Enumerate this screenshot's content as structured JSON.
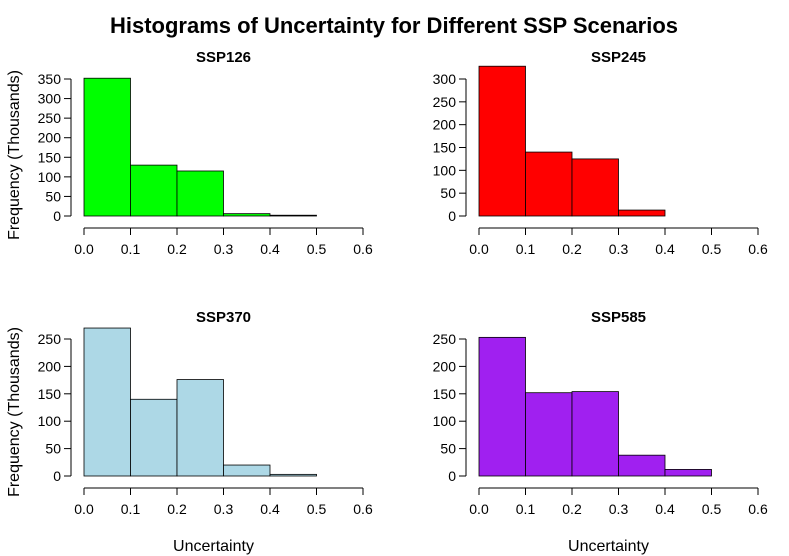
{
  "figure": {
    "title": "Histograms of Uncertainty for Different SSP Scenarios",
    "ylabel": "Frequency (Thousands)",
    "xlabel": "Uncertainty"
  },
  "chart_data": [
    {
      "type": "bar",
      "title": "SSP126",
      "color": "#00ff00",
      "bin_edges": [
        0.0,
        0.1,
        0.2,
        0.3,
        0.4,
        0.5,
        0.6
      ],
      "values": [
        352,
        130,
        115,
        6,
        2,
        0
      ],
      "xlim": [
        0,
        0.6
      ],
      "ylim": [
        0,
        350
      ],
      "xticks": [
        "0.0",
        "0.1",
        "0.2",
        "0.3",
        "0.4",
        "0.5",
        "0.6"
      ],
      "yticks": [
        0,
        50,
        100,
        150,
        200,
        250,
        300,
        350
      ],
      "ylabel": "Frequency (Thousands)",
      "xlabel": ""
    },
    {
      "type": "bar",
      "title": "SSP245",
      "color": "#ff0000",
      "bin_edges": [
        0.0,
        0.1,
        0.2,
        0.3,
        0.4,
        0.5,
        0.6
      ],
      "values": [
        328,
        140,
        125,
        13,
        0,
        0
      ],
      "xlim": [
        0,
        0.6
      ],
      "ylim": [
        0,
        300
      ],
      "xticks": [
        "0.0",
        "0.1",
        "0.2",
        "0.3",
        "0.4",
        "0.5",
        "0.6"
      ],
      "yticks": [
        0,
        50,
        100,
        150,
        200,
        250,
        300
      ],
      "ylabel": "",
      "xlabel": ""
    },
    {
      "type": "bar",
      "title": "SSP370",
      "color": "#add8e6",
      "bin_edges": [
        0.0,
        0.1,
        0.2,
        0.3,
        0.4,
        0.5,
        0.6
      ],
      "values": [
        270,
        140,
        176,
        20,
        3,
        0
      ],
      "xlim": [
        0,
        0.6
      ],
      "ylim": [
        0,
        250
      ],
      "xticks": [
        "0.0",
        "0.1",
        "0.2",
        "0.3",
        "0.4",
        "0.5",
        "0.6"
      ],
      "yticks": [
        0,
        50,
        100,
        150,
        200,
        250
      ],
      "ylabel": "Frequency (Thousands)",
      "xlabel": "Uncertainty"
    },
    {
      "type": "bar",
      "title": "SSP585",
      "color": "#a020f0",
      "bin_edges": [
        0.0,
        0.1,
        0.2,
        0.3,
        0.4,
        0.5,
        0.6
      ],
      "values": [
        253,
        152,
        154,
        38,
        12,
        0
      ],
      "xlim": [
        0,
        0.6
      ],
      "ylim": [
        0,
        250
      ],
      "xticks": [
        "0.0",
        "0.1",
        "0.2",
        "0.3",
        "0.4",
        "0.5",
        "0.6"
      ],
      "yticks": [
        0,
        50,
        100,
        150,
        200,
        250
      ],
      "ylabel": "",
      "xlabel": "Uncertainty"
    }
  ]
}
